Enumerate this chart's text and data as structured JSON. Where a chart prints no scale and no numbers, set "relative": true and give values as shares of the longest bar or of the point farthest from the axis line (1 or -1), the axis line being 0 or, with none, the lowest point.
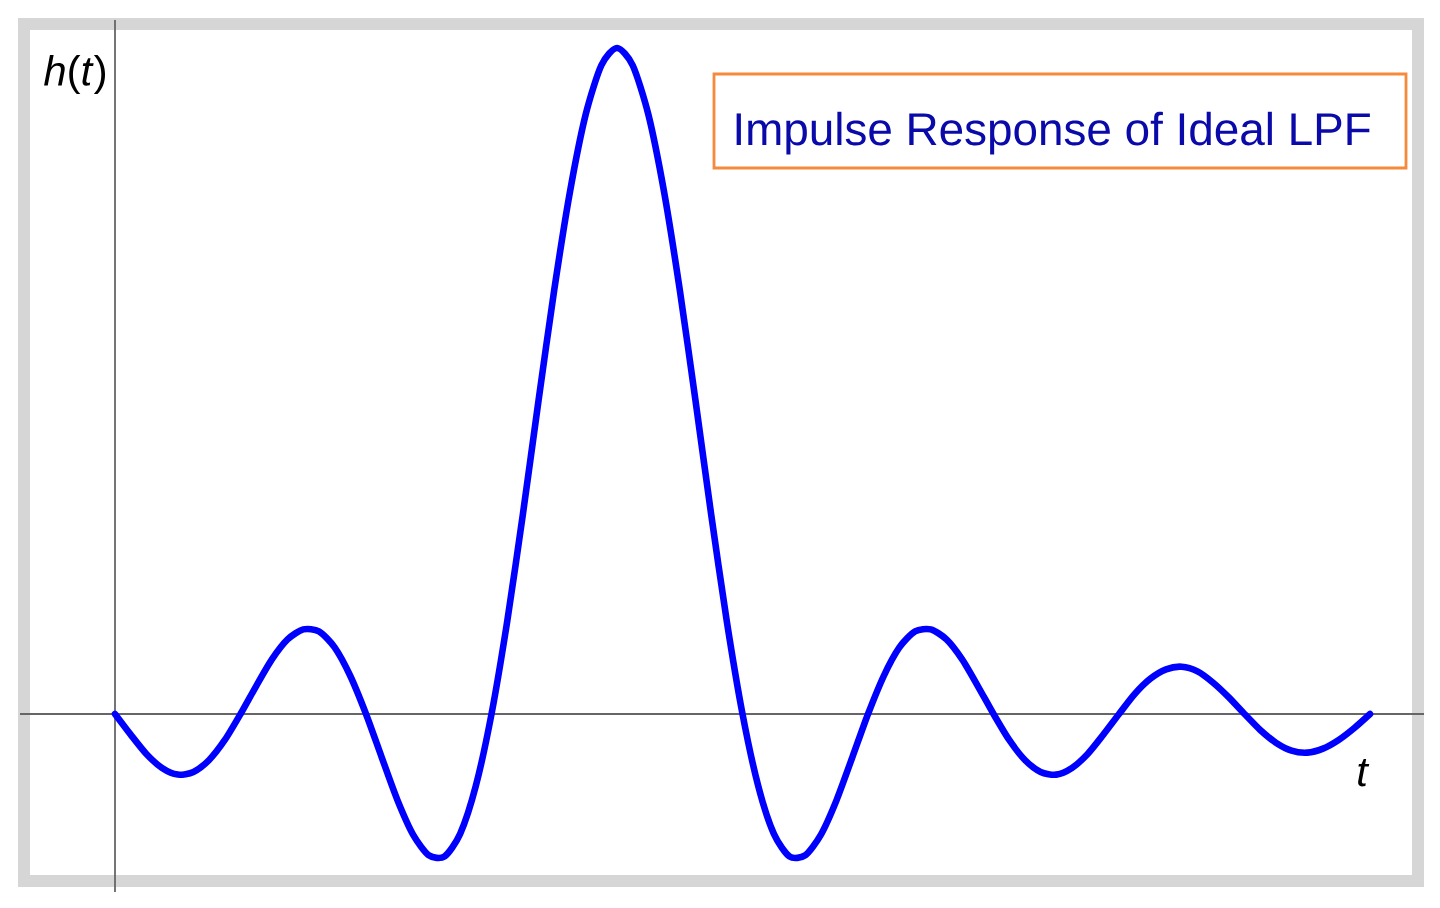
{
  "chart_data": {
    "type": "line",
    "title": "Impulse Response of Ideal LPF",
    "xlabel": "t",
    "ylabel": "*h*(*t*)",
    "relative": true,
    "line_style": "solid",
    "categories": [
      null,
      null,
      null,
      null,
      null,
      null,
      null,
      null,
      null,
      null,
      null,
      null,
      null,
      null,
      null,
      null,
      null,
      null,
      null,
      null,
      null,
      null,
      null,
      null,
      null,
      null,
      null,
      null,
      null,
      null,
      null,
      null,
      null,
      null,
      null,
      null,
      null,
      null,
      null,
      null,
      null,
      null,
      null,
      null,
      null,
      null,
      null,
      null,
      null,
      null,
      null,
      null,
      null,
      null,
      null,
      null,
      null,
      null,
      null,
      null,
      null,
      null,
      null,
      null,
      null,
      null,
      null,
      null,
      null,
      null,
      null,
      null,
      null,
      null,
      null,
      null,
      null,
      null,
      null,
      null,
      null
    ],
    "series": [
      {
        "color": "#0000ff",
        "values": [
          0,
          -0.031,
          -0.06,
          -0.081,
          -0.091,
          -0.087,
          -0.069,
          -0.039,
          0,
          0.042,
          0.082,
          0.112,
          0.127,
          0.124,
          0.1,
          0.057,
          0,
          -0.065,
          -0.129,
          -0.181,
          -0.212,
          -0.214,
          -0.18,
          -0.108,
          0,
          0.139,
          0.3,
          0.471,
          0.637,
          0.784,
          0.9,
          0.974,
          1,
          0.974,
          0.9,
          0.784,
          0.637,
          0.471,
          0.3,
          0.139,
          0,
          -0.108,
          -0.18,
          -0.214,
          -0.212,
          -0.181,
          -0.129,
          -0.065,
          0,
          0.057,
          0.1,
          0.124,
          0.127,
          0.112,
          0.082,
          0.042,
          0,
          -0.039,
          -0.069,
          -0.087,
          -0.091,
          -0.081,
          -0.06,
          -0.031,
          0,
          0.03,
          0.053,
          0.067,
          0.071,
          0.064,
          0.047,
          0.025,
          0,
          -0.024,
          -0.043,
          -0.055,
          -0.058,
          -0.052,
          -0.039,
          -0.021,
          0
        ]
      }
    ]
  }
}
